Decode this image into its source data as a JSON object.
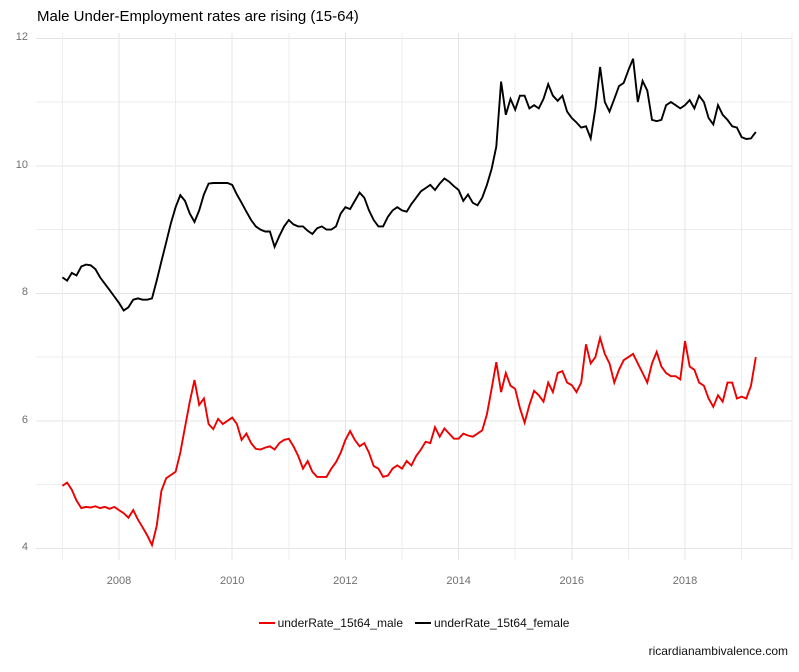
{
  "page": {
    "caption": "ricardianambivalence.com"
  },
  "chart_data": {
    "type": "line",
    "title": "Male Under-Employment rates are rising (15-64)",
    "xlabel": "",
    "ylabel": "",
    "x_axis": {
      "tick_labels": [
        "2008",
        "2010",
        "2012",
        "2014",
        "2016",
        "2018"
      ],
      "tick_years": [
        2008,
        2010,
        2012,
        2014,
        2016,
        2018
      ],
      "minor_years": [
        2007,
        2009,
        2011,
        2013,
        2015,
        2017,
        2019
      ],
      "range": [
        2006.55,
        2019.9
      ]
    },
    "y_axis": {
      "tick_labels": [
        "12",
        "10",
        "8",
        "6",
        "4"
      ],
      "tick_values": [
        12,
        10,
        8,
        6,
        4
      ],
      "minor_values": [
        11,
        9,
        7,
        5
      ],
      "range": [
        3.82,
        12.08
      ]
    },
    "grid": true,
    "legend_position": "bottom-center",
    "frequency": "monthly",
    "start": "2007-01",
    "end": "2019-04",
    "series": [
      {
        "name": "underRate_15t64_male",
        "color": "#ee0000",
        "values": [
          4.98,
          5.03,
          4.92,
          4.75,
          4.63,
          4.65,
          4.64,
          4.66,
          4.63,
          4.65,
          4.62,
          4.65,
          4.6,
          4.55,
          4.48,
          4.6,
          4.45,
          4.33,
          4.2,
          4.05,
          4.35,
          4.9,
          5.1,
          5.15,
          5.2,
          5.5,
          5.9,
          6.3,
          6.64,
          6.25,
          6.35,
          5.95,
          5.87,
          6.03,
          5.95,
          6.0,
          6.05,
          5.95,
          5.7,
          5.8,
          5.65,
          5.56,
          5.55,
          5.58,
          5.6,
          5.55,
          5.65,
          5.7,
          5.72,
          5.6,
          5.45,
          5.25,
          5.37,
          5.2,
          5.12,
          5.12,
          5.12,
          5.25,
          5.35,
          5.5,
          5.7,
          5.84,
          5.7,
          5.6,
          5.65,
          5.5,
          5.29,
          5.25,
          5.12,
          5.14,
          5.25,
          5.3,
          5.25,
          5.37,
          5.3,
          5.45,
          5.55,
          5.67,
          5.65,
          5.9,
          5.75,
          5.88,
          5.8,
          5.72,
          5.72,
          5.8,
          5.77,
          5.75,
          5.8,
          5.85,
          6.1,
          6.5,
          6.92,
          6.45,
          6.75,
          6.55,
          6.5,
          6.2,
          5.97,
          6.25,
          6.47,
          6.4,
          6.3,
          6.6,
          6.45,
          6.75,
          6.78,
          6.6,
          6.56,
          6.45,
          6.6,
          7.2,
          6.9,
          7.0,
          7.3,
          7.05,
          6.9,
          6.6,
          6.8,
          6.95,
          7.0,
          7.05,
          6.9,
          6.75,
          6.6,
          6.9,
          7.08,
          6.85,
          6.75,
          6.7,
          6.7,
          6.65,
          7.25,
          6.85,
          6.8,
          6.6,
          6.55,
          6.35,
          6.22,
          6.4,
          6.3,
          6.6,
          6.6,
          6.35,
          6.38,
          6.35,
          6.55,
          7.0
        ]
      },
      {
        "name": "underRate_15t64_female",
        "color": "#000000",
        "values": [
          8.25,
          8.2,
          8.32,
          8.28,
          8.42,
          8.45,
          8.44,
          8.38,
          8.25,
          8.15,
          8.05,
          7.95,
          7.85,
          7.73,
          7.78,
          7.9,
          7.92,
          7.9,
          7.9,
          7.92,
          8.2,
          8.5,
          8.8,
          9.1,
          9.35,
          9.54,
          9.45,
          9.25,
          9.12,
          9.3,
          9.55,
          9.72,
          9.73,
          9.73,
          9.73,
          9.73,
          9.7,
          9.55,
          9.42,
          9.28,
          9.15,
          9.05,
          9.0,
          8.97,
          8.97,
          8.73,
          8.9,
          9.05,
          9.15,
          9.08,
          9.05,
          9.05,
          8.98,
          8.93,
          9.02,
          9.05,
          9.0,
          9.0,
          9.05,
          9.25,
          9.35,
          9.32,
          9.45,
          9.58,
          9.5,
          9.3,
          9.15,
          9.05,
          9.05,
          9.2,
          9.3,
          9.35,
          9.3,
          9.28,
          9.4,
          9.5,
          9.6,
          9.65,
          9.7,
          9.62,
          9.72,
          9.8,
          9.75,
          9.68,
          9.62,
          9.45,
          9.55,
          9.42,
          9.38,
          9.5,
          9.7,
          9.95,
          10.3,
          11.32,
          10.8,
          11.05,
          10.88,
          11.1,
          11.1,
          10.9,
          10.95,
          10.9,
          11.05,
          11.28,
          11.1,
          11.02,
          11.1,
          10.85,
          10.75,
          10.68,
          10.6,
          10.62,
          10.43,
          10.9,
          11.55,
          11.0,
          10.85,
          11.05,
          11.25,
          11.3,
          11.5,
          11.68,
          11.0,
          11.33,
          11.18,
          10.72,
          10.7,
          10.72,
          10.95,
          11.0,
          10.95,
          10.9,
          10.95,
          11.03,
          10.9,
          11.1,
          11.0,
          10.75,
          10.65,
          10.95,
          10.8,
          10.72,
          10.62,
          10.6,
          10.45,
          10.42,
          10.43,
          10.53
        ]
      }
    ],
    "colors": {
      "grid_major": "#e4e4e4",
      "grid_minor": "#ededed",
      "axis_text": "#6f6f6f",
      "background": "#ffffff"
    }
  }
}
